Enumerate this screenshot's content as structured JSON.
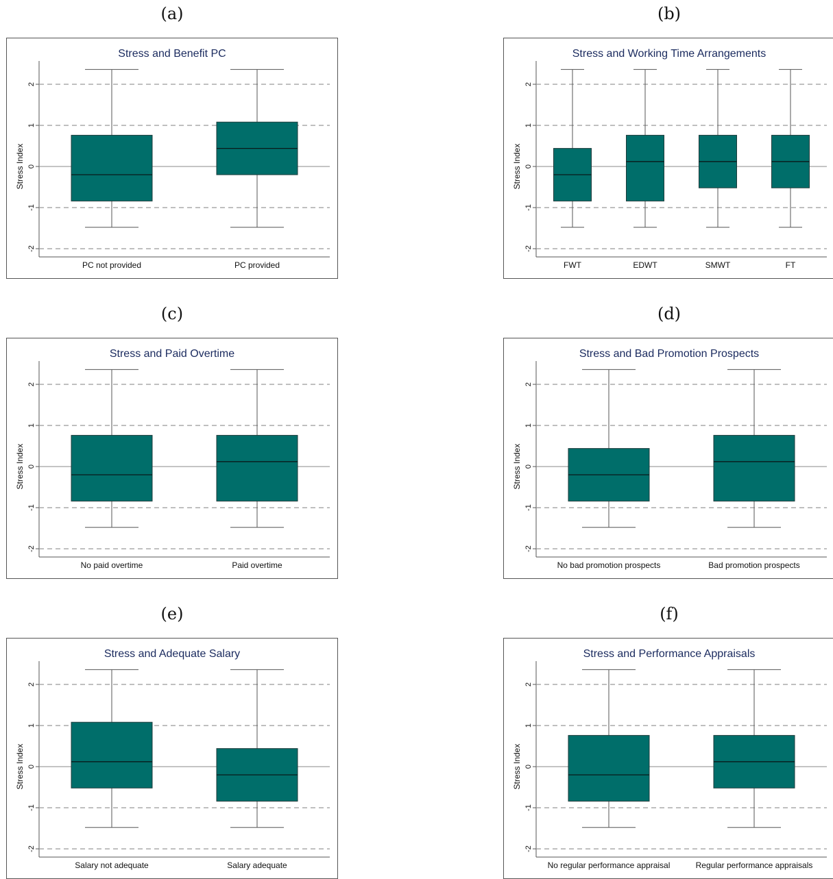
{
  "panel_labels": [
    "(a)",
    "(b)",
    "(c)",
    "(d)",
    "(e)",
    "(f)"
  ],
  "colors": {
    "box_fill": "#006e6a",
    "title": "#1a2a5e",
    "grid": "#999999",
    "axis": "#555555"
  },
  "chart_data": [
    {
      "type": "box",
      "title": "Stress and Benefit PC",
      "ylabel": "Stress Index",
      "ylim": [
        -2.2,
        2.6
      ],
      "yticks": [
        -2,
        -1,
        0,
        1,
        2
      ],
      "categories": [
        "PC not provided",
        "PC provided"
      ],
      "boxes": [
        {
          "whisker_low": -1.48,
          "q1": -0.84,
          "median": -0.2,
          "q3": 0.76,
          "whisker_high": 2.36
        },
        {
          "whisker_low": -1.48,
          "q1": -0.2,
          "median": 0.44,
          "q3": 1.08,
          "whisker_high": 2.36
        }
      ]
    },
    {
      "type": "box",
      "title": "Stress and Working Time Arrangements",
      "ylabel": "Stress Index",
      "ylim": [
        -2.2,
        2.6
      ],
      "yticks": [
        -2,
        -1,
        0,
        1,
        2
      ],
      "categories": [
        "FWT",
        "EDWT",
        "SMWT",
        "FT"
      ],
      "boxes": [
        {
          "whisker_low": -1.48,
          "q1": -0.84,
          "median": -0.2,
          "q3": 0.44,
          "whisker_high": 2.36
        },
        {
          "whisker_low": -1.48,
          "q1": -0.84,
          "median": 0.12,
          "q3": 0.76,
          "whisker_high": 2.36
        },
        {
          "whisker_low": -1.48,
          "q1": -0.52,
          "median": 0.12,
          "q3": 0.76,
          "whisker_high": 2.36
        },
        {
          "whisker_low": -1.48,
          "q1": -0.52,
          "median": 0.12,
          "q3": 0.76,
          "whisker_high": 2.36
        }
      ]
    },
    {
      "type": "box",
      "title": "Stress and Paid Overtime",
      "ylabel": "Stress Index",
      "ylim": [
        -2.2,
        2.6
      ],
      "yticks": [
        -2,
        -1,
        0,
        1,
        2
      ],
      "categories": [
        "No paid overtime",
        "Paid overtime"
      ],
      "boxes": [
        {
          "whisker_low": -1.48,
          "q1": -0.84,
          "median": -0.2,
          "q3": 0.76,
          "whisker_high": 2.36
        },
        {
          "whisker_low": -1.48,
          "q1": -0.84,
          "median": 0.12,
          "q3": 0.76,
          "whisker_high": 2.36
        }
      ]
    },
    {
      "type": "box",
      "title": "Stress and Bad Promotion Prospects",
      "ylabel": "Stress Index",
      "ylim": [
        -2.2,
        2.6
      ],
      "yticks": [
        -2,
        -1,
        0,
        1,
        2
      ],
      "categories": [
        "No bad promotion prospects",
        "Bad promotion prospects"
      ],
      "boxes": [
        {
          "whisker_low": -1.48,
          "q1": -0.84,
          "median": -0.2,
          "q3": 0.44,
          "whisker_high": 2.36
        },
        {
          "whisker_low": -1.48,
          "q1": -0.84,
          "median": 0.12,
          "q3": 0.76,
          "whisker_high": 2.36
        }
      ]
    },
    {
      "type": "box",
      "title": "Stress and Adequate Salary",
      "ylabel": "Stress Index",
      "ylim": [
        -2.2,
        2.6
      ],
      "yticks": [
        -2,
        -1,
        0,
        1,
        2
      ],
      "categories": [
        "Salary not adequate",
        "Salary adequate"
      ],
      "boxes": [
        {
          "whisker_low": -1.48,
          "q1": -0.52,
          "median": 0.12,
          "q3": 1.08,
          "whisker_high": 2.36
        },
        {
          "whisker_low": -1.48,
          "q1": -0.84,
          "median": -0.2,
          "q3": 0.44,
          "whisker_high": 2.36
        }
      ]
    },
    {
      "type": "box",
      "title": "Stress and Performance Appraisals",
      "ylabel": "Stress Index",
      "ylim": [
        -2.2,
        2.6
      ],
      "yticks": [
        -2,
        -1,
        0,
        1,
        2
      ],
      "categories": [
        "No regular performance appraisal",
        "Regular performance appraisals"
      ],
      "boxes": [
        {
          "whisker_low": -1.48,
          "q1": -0.84,
          "median": -0.2,
          "q3": 0.76,
          "whisker_high": 2.36
        },
        {
          "whisker_low": -1.48,
          "q1": -0.52,
          "median": 0.12,
          "q3": 0.76,
          "whisker_high": 2.36
        }
      ]
    }
  ]
}
